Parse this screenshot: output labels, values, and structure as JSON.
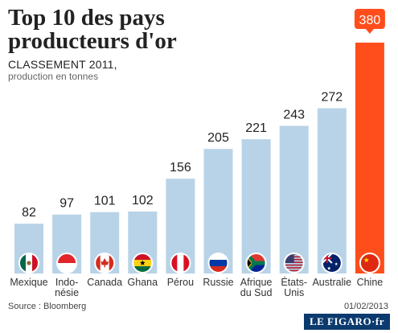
{
  "page": {
    "title": "Top 10 des pays producteurs d'or",
    "subtitle": "CLASSEMENT 2011,",
    "unit_note": "production en tonnes",
    "source": "Source : Bloomberg",
    "date": "01/02/2013",
    "brand": "LE FIGARO·fr"
  },
  "chart_data": {
    "type": "bar",
    "title": "Top 10 des pays producteurs d'or",
    "subtitle": "CLASSEMENT 2011, production en tonnes",
    "xlabel": "",
    "ylabel": "",
    "ylim": [
      0,
      380
    ],
    "grid": false,
    "categories": [
      {
        "label": "Mexique",
        "lines": [
          "Mexique"
        ]
      },
      {
        "label": "Indonésie",
        "lines": [
          "Indo-",
          "nésie"
        ]
      },
      {
        "label": "Canada",
        "lines": [
          "Canada"
        ]
      },
      {
        "label": "Ghana",
        "lines": [
          "Ghana"
        ]
      },
      {
        "label": "Pérou",
        "lines": [
          "Pérou"
        ]
      },
      {
        "label": "Russie",
        "lines": [
          "Russie"
        ]
      },
      {
        "label": "Afrique du Sud",
        "lines": [
          "Afrique",
          "du Sud"
        ]
      },
      {
        "label": "États-Unis",
        "lines": [
          "États-",
          "Unis"
        ]
      },
      {
        "label": "Australie",
        "lines": [
          "Australie"
        ]
      },
      {
        "label": "Chine",
        "lines": [
          "Chine"
        ]
      }
    ],
    "values": [
      82,
      97,
      101,
      102,
      156,
      205,
      221,
      243,
      272,
      380
    ],
    "highlight_index": 9,
    "colors": {
      "bar": "#b8d3e7",
      "highlight": "#ff4e1c",
      "value_text": "#222222",
      "highlight_label_bg": "#ff4e1c",
      "highlight_label_text": "#ffffff"
    },
    "flags": [
      "mexico",
      "indonesia",
      "canada",
      "ghana",
      "peru",
      "russia",
      "south-africa",
      "usa",
      "australia",
      "china"
    ]
  }
}
